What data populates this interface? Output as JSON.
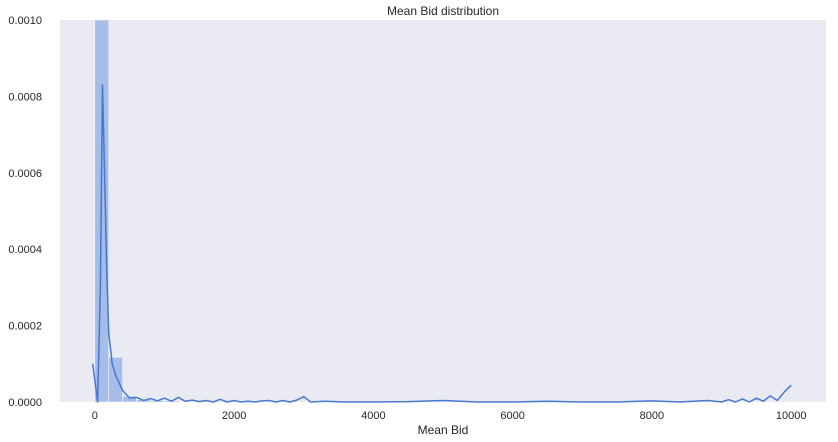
{
  "chart_data": {
    "type": "bar",
    "title": "Mean Bid distribution",
    "xlabel": "Mean Bid",
    "ylabel": "",
    "xlim": [
      -500,
      10500
    ],
    "ylim": [
      0,
      0.001
    ],
    "xticks": [
      0,
      2000,
      4000,
      6000,
      8000,
      10000
    ],
    "yticks": [
      "0.0000",
      "0.0002",
      "0.0004",
      "0.0006",
      "0.0008",
      "0.0010"
    ],
    "grid": false,
    "colors": {
      "background": "#eaeaf2",
      "bar": "#a6bde8",
      "line": "#4878d0"
    },
    "series": [
      {
        "type": "histogram",
        "bin_width": 200,
        "bins": [
          {
            "x0": 0,
            "x1": 200,
            "y": 0.0011
          },
          {
            "x0": 200,
            "x1": 400,
            "y": 0.000117
          },
          {
            "x0": 400,
            "x1": 600,
            "y": 1.5e-05
          },
          {
            "x0": 600,
            "x1": 800,
            "y": 6e-06
          },
          {
            "x0": 800,
            "x1": 1000,
            "y": 4e-06
          },
          {
            "x0": 1000,
            "x1": 1200,
            "y": 3e-06
          }
        ]
      },
      {
        "type": "kde-line",
        "x": [
          -30,
          40,
          80,
          110,
          140,
          170,
          200,
          250,
          300,
          400,
          500,
          600,
          700,
          800,
          900,
          1000,
          1100,
          1200,
          1300,
          1400,
          1500,
          1600,
          1700,
          1800,
          1900,
          2000,
          2100,
          2200,
          2300,
          2400,
          2500,
          2600,
          2700,
          2800,
          2900,
          3000,
          3100,
          3300,
          3600,
          4000,
          4500,
          5000,
          5500,
          6000,
          6500,
          7000,
          7500,
          8000,
          8400,
          8600,
          8800,
          9000,
          9100,
          9200,
          9300,
          9400,
          9500,
          9600,
          9700,
          9800,
          9900,
          10000
        ],
        "y": [
          0.0001,
          0.0,
          0.0003,
          0.00083,
          0.0006,
          0.00035,
          0.00018,
          0.0001,
          7e-05,
          3e-05,
          1e-05,
          1.2e-05,
          4e-06,
          9e-06,
          3e-06,
          1e-05,
          2e-06,
          1.2e-05,
          2e-06,
          5e-06,
          1e-06,
          4e-06,
          0.0,
          7e-06,
          0.0,
          4e-06,
          0.0,
          2e-06,
          0.0,
          3e-06,
          4e-06,
          0.0,
          4e-06,
          0.0,
          5e-06,
          1.4e-05,
          0.0,
          2e-06,
          0.0,
          0.0,
          1e-06,
          4e-06,
          0.0,
          0.0,
          2e-06,
          0.0,
          0.0,
          3e-06,
          0.0,
          2e-06,
          4e-06,
          0.0,
          6e-06,
          0.0,
          8e-06,
          0.0,
          1e-05,
          2e-06,
          1.6e-05,
          4e-06,
          2.6e-05,
          4.4e-05
        ]
      }
    ]
  }
}
